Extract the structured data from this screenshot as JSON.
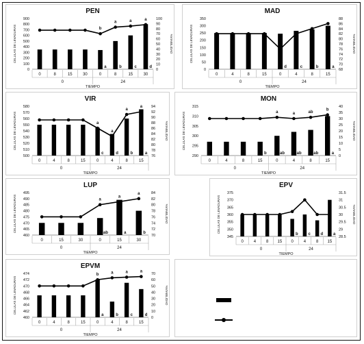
{
  "chart_data": [
    {
      "id": "PEN",
      "type": "bar+line",
      "title": "PEN",
      "ylabel": "CELULAS DE LEVADURAS",
      "y2label": "%VIABILIDAD",
      "xlabel": "TIEMPO",
      "ylim": [
        0,
        900
      ],
      "yticks": [
        0,
        100,
        200,
        300,
        400,
        500,
        600,
        700,
        800,
        900
      ],
      "y2lim": [
        0,
        100
      ],
      "y2ticks": [
        0,
        10,
        20,
        30,
        40,
        50,
        60,
        70,
        80,
        90,
        100
      ],
      "categories": [
        "0",
        "8",
        "15",
        "30",
        "0",
        "8",
        "15",
        "30"
      ],
      "groups": [
        {
          "label": "0",
          "span": [
            0,
            3
          ]
        },
        {
          "label": "24",
          "span": [
            4,
            7
          ]
        }
      ],
      "bars": [
        350,
        350,
        350,
        350,
        340,
        500,
        600,
        800
      ],
      "line": [
        77,
        77,
        77,
        77,
        70,
        83,
        85,
        88
      ],
      "letters": [
        "",
        "",
        "",
        "",
        "a",
        "b",
        "c",
        "d"
      ],
      "line_letters": [
        "",
        "",
        "",
        "",
        "b",
        "a",
        "a",
        "a"
      ]
    },
    {
      "id": "MAD",
      "type": "bar+line",
      "title": "MAD",
      "ylabel": "CELULAS DE LEVADURAS",
      "y2label": "%VIABILIDAD",
      "xlabel": "TIEMPO",
      "ylim": [
        0,
        350
      ],
      "yticks": [
        0,
        50,
        100,
        150,
        200,
        250,
        300,
        350
      ],
      "y2lim": [
        68,
        88
      ],
      "y2ticks": [
        68,
        70,
        72,
        74,
        76,
        78,
        80,
        82,
        84,
        86,
        88
      ],
      "categories": [
        "0",
        "4",
        "8",
        "15",
        "0",
        "4",
        "8",
        "15"
      ],
      "groups": [
        {
          "label": "0",
          "span": [
            0,
            3
          ]
        },
        {
          "label": "24",
          "span": [
            4,
            7
          ]
        }
      ],
      "bars": [
        250,
        250,
        250,
        250,
        245,
        265,
        275,
        300
      ],
      "line": [
        82,
        82,
        82,
        82,
        76,
        82,
        84,
        86
      ],
      "letters": [
        "",
        "",
        "",
        "",
        "d",
        "c",
        "b",
        "a"
      ],
      "line_letters": []
    },
    {
      "id": "VIR",
      "type": "bar+line",
      "title": "VIR",
      "ylabel": "CELULAS DE LEVADURAS",
      "y2label": "%VIABILIDAD",
      "xlabel": "TIEMPO",
      "ylim": [
        500,
        580
      ],
      "yticks": [
        500,
        510,
        520,
        530,
        540,
        550,
        560,
        570,
        580
      ],
      "y2lim": [
        76,
        94
      ],
      "y2ticks": [
        76,
        78,
        80,
        82,
        84,
        86,
        88,
        90,
        92,
        94
      ],
      "categories": [
        "0",
        "4",
        "8",
        "15",
        "0",
        "4",
        "8",
        "15"
      ],
      "groups": [
        {
          "label": "0",
          "span": [
            0,
            3
          ]
        },
        {
          "label": "24",
          "span": [
            4,
            7
          ]
        }
      ],
      "bars": [
        550,
        550,
        550,
        550,
        545,
        535,
        560,
        575
      ],
      "line": [
        89,
        89,
        89,
        89,
        86,
        83,
        91,
        92
      ],
      "letters": [
        "",
        "",
        "",
        "",
        "c",
        "d",
        "b",
        "a"
      ],
      "line_letters": [
        "",
        "",
        "",
        "",
        "a",
        "a",
        "a",
        "a"
      ]
    },
    {
      "id": "MON",
      "type": "bar+line",
      "title": "MON",
      "ylabel": "CELULAS DE LEVADURAS",
      "y2label": "%VIABILIDAD",
      "xlabel": "TIEMPO",
      "ylim": [
        290,
        315
      ],
      "yticks": [
        290,
        295,
        300,
        305,
        310,
        315
      ],
      "y2lim": [
        0,
        40
      ],
      "y2ticks": [
        0,
        5,
        10,
        15,
        20,
        25,
        30,
        35,
        40
      ],
      "categories": [
        "0",
        "4",
        "8",
        "15",
        "0",
        "4",
        "8",
        "15"
      ],
      "groups": [
        {
          "label": "0",
          "span": [
            0,
            3
          ]
        },
        {
          "label": "24",
          "span": [
            4,
            7
          ]
        }
      ],
      "bars": [
        297,
        297,
        297,
        297,
        300,
        302,
        303,
        310
      ],
      "line": [
        30,
        30,
        30,
        30,
        31,
        30,
        31,
        33
      ],
      "letters": [
        "",
        "",
        "",
        "b",
        "ab",
        "ab",
        "ab",
        "a"
      ],
      "line_letters": [
        "",
        "",
        "",
        "",
        "a",
        "a",
        "ab",
        "b"
      ]
    },
    {
      "id": "LUP",
      "type": "bar+line",
      "title": "LUP",
      "ylabel": "CELULAS DE LEVADURAS",
      "y2label": "%VIABILIDAD",
      "xlabel": "TIEMPO",
      "ylim": [
        460,
        495
      ],
      "yticks": [
        460,
        465,
        470,
        475,
        480,
        485,
        490,
        495
      ],
      "y2lim": [
        70,
        84
      ],
      "y2ticks": [
        70,
        72,
        74,
        76,
        78,
        80,
        82,
        84
      ],
      "categories": [
        "0",
        "15",
        "30",
        "0",
        "15",
        "30"
      ],
      "groups": [
        {
          "label": "0",
          "span": [
            0,
            2
          ]
        },
        {
          "label": "24",
          "span": [
            3,
            5
          ]
        }
      ],
      "bars": [
        470,
        470,
        470,
        474,
        489,
        480
      ],
      "line": [
        76,
        76,
        76,
        80,
        81,
        82
      ],
      "letters": [
        "",
        "",
        "",
        "ab",
        "a",
        "b"
      ],
      "line_letters": [
        "",
        "",
        "",
        "a",
        "a",
        "a"
      ]
    },
    {
      "id": "EPV",
      "type": "bar+line",
      "title": "EPV",
      "ylabel": "CELULAS DE LEVADURAS",
      "y2label": "%VIABILIDAD",
      "xlabel": "TIEMPO",
      "ylim": [
        345,
        375
      ],
      "yticks": [
        345,
        350,
        355,
        360,
        365,
        370,
        375
      ],
      "y2lim": [
        28.5,
        31.5
      ],
      "y2ticks": [
        28.5,
        29,
        29.5,
        30,
        30.5,
        31,
        31.5
      ],
      "categories": [
        "0",
        "4",
        "8",
        "15",
        "0",
        "4",
        "8",
        "15"
      ],
      "groups": [
        {
          "label": "0",
          "span": [
            0,
            3
          ]
        },
        {
          "label": "24",
          "span": [
            4,
            7
          ]
        }
      ],
      "bars": [
        360,
        360,
        360,
        360,
        357,
        360,
        356,
        370
      ],
      "line": [
        30,
        30,
        30,
        30,
        30.2,
        31,
        30,
        30
      ],
      "letters": [
        "",
        "",
        "",
        "",
        "b",
        "c",
        "d",
        "a"
      ],
      "line_letters": []
    },
    {
      "id": "EPVM",
      "type": "bar+line",
      "title": "EPVM",
      "ylabel": "CELULAS DE LEVADURAS",
      "y2label": "%VIABILIDAD",
      "xlabel": "TIEMPO",
      "ylim": [
        460,
        474
      ],
      "yticks": [
        460,
        462,
        464,
        466,
        468,
        470,
        472,
        474
      ],
      "y2lim": [
        0,
        70
      ],
      "y2ticks": [
        0,
        10,
        20,
        30,
        40,
        50,
        60,
        70
      ],
      "categories": [
        "0",
        "4",
        "8",
        "15",
        "0",
        "4",
        "8",
        "15"
      ],
      "groups": [
        {
          "label": "0",
          "span": [
            0,
            3
          ]
        },
        {
          "label": "24",
          "span": [
            4,
            7
          ]
        }
      ],
      "bars": [
        467,
        467,
        467,
        467,
        472,
        465,
        471,
        469
      ],
      "line": [
        50,
        50,
        50,
        50,
        60,
        63,
        64,
        65
      ],
      "letters": [
        "",
        "",
        "",
        "",
        "a",
        "b",
        "c",
        "d"
      ],
      "line_letters": [
        "",
        "",
        "",
        "",
        "b",
        "a",
        "a",
        "a"
      ]
    }
  ]
}
